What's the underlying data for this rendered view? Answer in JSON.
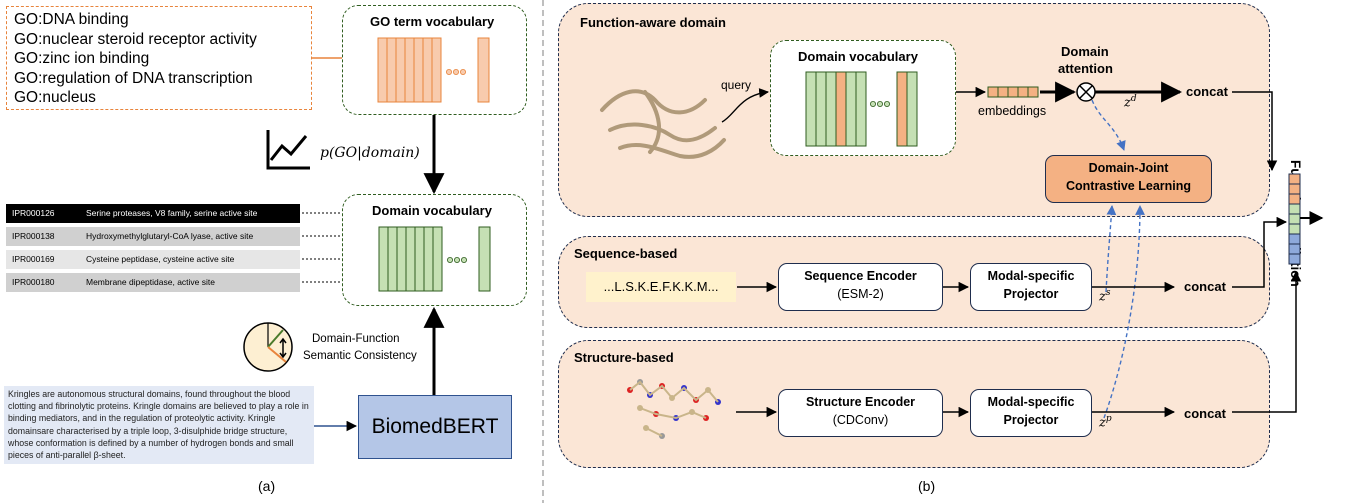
{
  "panel_a": {
    "go_terms": [
      "GO:DNA binding",
      "GO:nuclear steroid receptor activity",
      "GO:zinc ion binding",
      "GO:regulation of DNA transcription",
      "GO:nucleus"
    ],
    "go_vocab_title": "GO term vocabulary",
    "prob_label": "p(GO|domain)",
    "domain_vocab_title": "Domain vocabulary",
    "ipr_rows": [
      {
        "id": "IPR000126",
        "desc": "Serine proteases, V8 family, serine active site"
      },
      {
        "id": "IPR000138",
        "desc": "Hydroxymethylglutaryl-CoA lyase, active site"
      },
      {
        "id": "IPR000169",
        "desc": "Cysteine peptidase, cysteine active site"
      },
      {
        "id": "IPR000180",
        "desc": "Membrane dipeptidase, active site"
      }
    ],
    "consistency_label_1": "Domain-Function",
    "consistency_label_2": "Semantic Consistency",
    "abstract": "Kringles are autonomous structural domains, found throughout the blood clotting and fibrinolytic proteins. Kringle domains are believed to play a role in binding mediators, and in the regulation of proteolytic activity. Kringle domainsare characterised by a triple loop, 3-disulphide bridge structure, whose conformation is defined by a number of hydrogen bonds and small pieces of anti-parallel β-sheet.",
    "model": "BiomedBERT",
    "caption": "(a)"
  },
  "panel_b": {
    "function_aware_title": "Function-aware domain",
    "query_label": "query",
    "domain_vocab_title": "Domain vocabulary",
    "embeddings_label": "embeddings",
    "attention_label_1": "Domain",
    "attention_label_2": "attention",
    "zd": "z",
    "zd_sup": "d",
    "contrastive_1": "Domain-Joint",
    "contrastive_2": "Contrastive Learning",
    "sequence_title": "Sequence-based",
    "sequence_text": "...L.S.K.E.F.K.K.M...",
    "seq_encoder_1": "Sequence Encoder",
    "seq_encoder_2": "(ESM-2)",
    "projector_1": "Modal-specific",
    "projector_2": "Projector",
    "zs": "z",
    "zs_sup": "s",
    "structure_title": "Structure-based",
    "struct_encoder_1": "Structure Encoder",
    "struct_encoder_2": "(CDConv)",
    "zp": "z",
    "zp_sup": "p",
    "concat": "concat",
    "output": "Function Prediction",
    "caption": "(b)"
  },
  "colors": {
    "go_orange": "#f8cbad",
    "domain_green": "#c5e0b4",
    "panel_fill": "#fbe6d6",
    "biomed_blue": "#b4c6e7",
    "arrow_blue": "#4472c4"
  }
}
